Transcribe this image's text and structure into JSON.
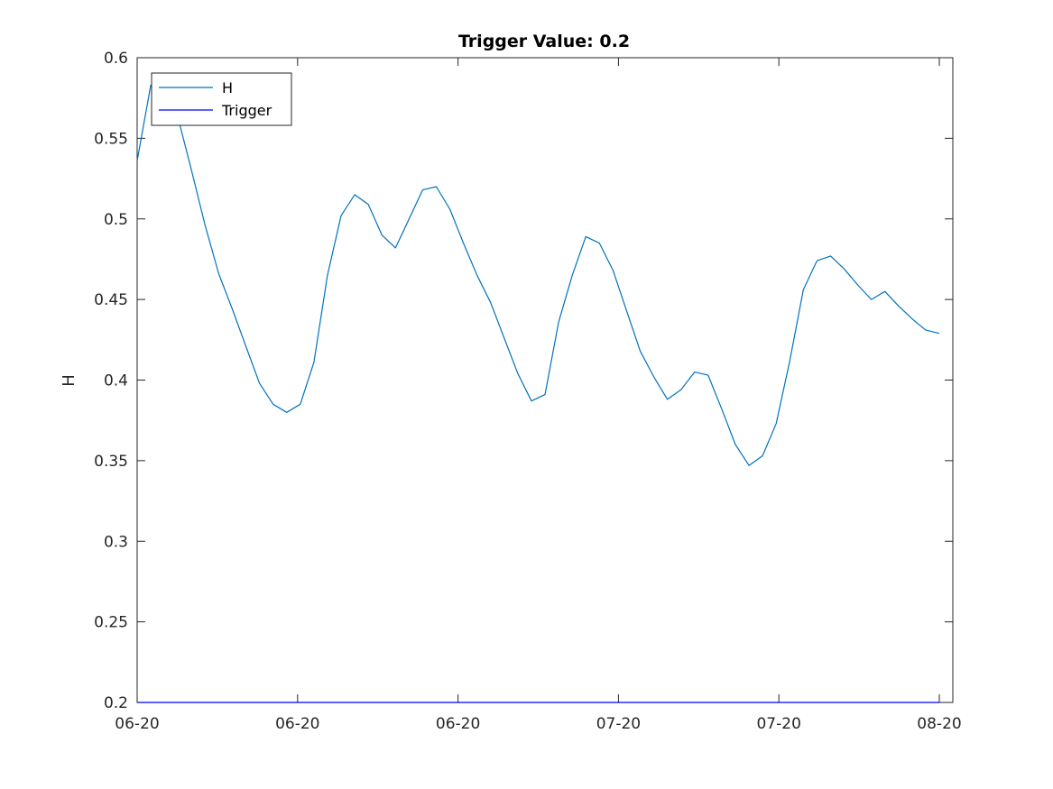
{
  "chart_data": {
    "type": "line",
    "title": "Trigger Value: 0.2",
    "xlabel": "",
    "ylabel": "H",
    "ylim": [
      0.2,
      0.6
    ],
    "yticks": [
      "0.2",
      "0.25",
      "0.3",
      "0.35",
      "0.4",
      "0.45",
      "0.5",
      "0.55",
      "0.6"
    ],
    "xticks": [
      "06-20",
      "06-20",
      "06-20",
      "07-20",
      "07-20",
      "08-20"
    ],
    "grid": false,
    "legend_position": "top-left",
    "series": [
      {
        "name": "H",
        "color": "#0072BD",
        "x_index": [
          0,
          1,
          2,
          3,
          4,
          5,
          6,
          7,
          8,
          9,
          10,
          11,
          12,
          13,
          14,
          15,
          16,
          17,
          18,
          19,
          20,
          21,
          22,
          23,
          24,
          25,
          26,
          27,
          28,
          29,
          30,
          31,
          32,
          33,
          34,
          35,
          36,
          37,
          38,
          39,
          40,
          41,
          42,
          43,
          44,
          45,
          46,
          47,
          48,
          49,
          50,
          51,
          52,
          53,
          54,
          55,
          56,
          57,
          58,
          59
        ],
        "values": [
          0.536,
          0.583,
          0.583,
          0.563,
          0.53,
          0.496,
          0.466,
          0.444,
          0.421,
          0.398,
          0.385,
          0.38,
          0.385,
          0.411,
          0.465,
          0.502,
          0.515,
          0.509,
          0.49,
          0.482,
          0.5,
          0.518,
          0.52,
          0.506,
          0.485,
          0.465,
          0.448,
          0.426,
          0.404,
          0.387,
          0.391,
          0.436,
          0.465,
          0.489,
          0.485,
          0.468,
          0.443,
          0.418,
          0.402,
          0.388,
          0.394,
          0.405,
          0.403,
          0.382,
          0.36,
          0.347,
          0.353,
          0.373,
          0.412,
          0.456,
          0.474,
          0.477,
          0.469,
          0.459,
          0.45,
          0.455,
          0.446,
          0.438,
          0.431,
          0.429
        ]
      },
      {
        "name": "Trigger",
        "color": "#0000FF",
        "x_index": [
          0,
          59
        ],
        "values": [
          0.2,
          0.2
        ]
      }
    ]
  }
}
